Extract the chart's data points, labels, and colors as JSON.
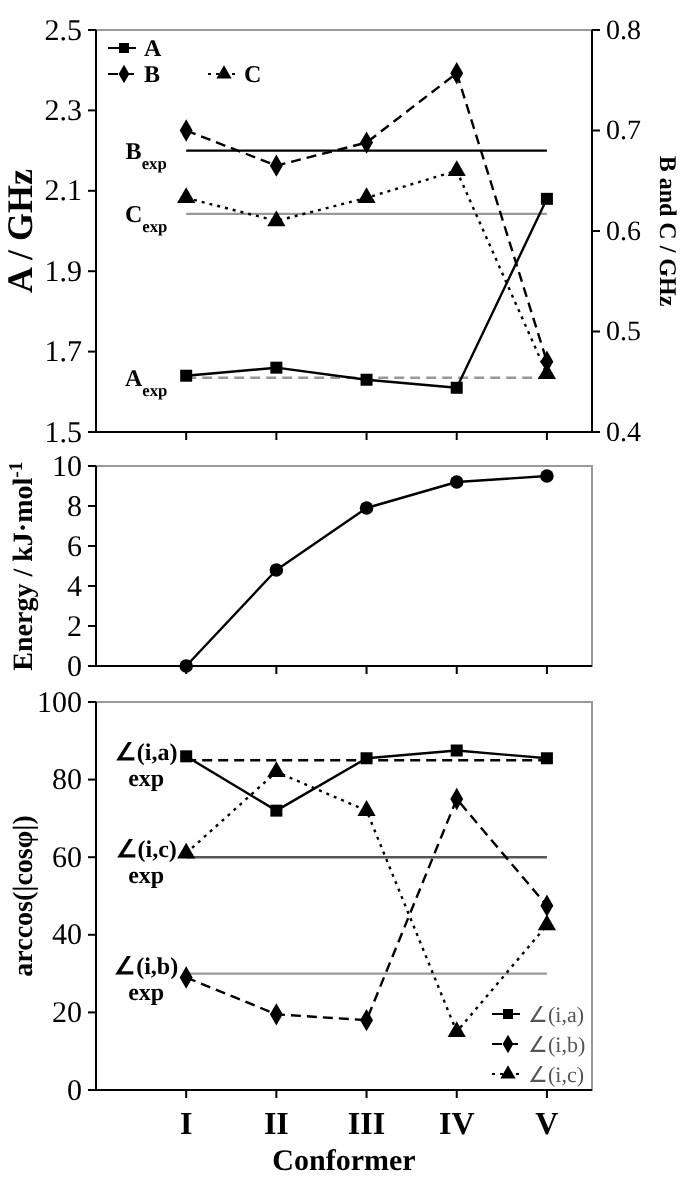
{
  "chart_data": [
    {
      "type": "line",
      "ylabel": "A / GHz",
      "y2label": "B and C / GHz",
      "categories": [
        null,
        null,
        null,
        null,
        null
      ],
      "ylim": [
        1.5,
        2.5
      ],
      "yticks": [
        1.5,
        1.7,
        1.9,
        2.1,
        2.3,
        2.5
      ],
      "y2lim": [
        0.4,
        0.8
      ],
      "y2ticks": [
        0.4,
        0.5,
        0.6,
        0.7,
        0.8
      ],
      "tick_labels": "y",
      "grid": false,
      "legend": "top left",
      "series": [
        {
          "name": "A",
          "color": "#000000",
          "values": [
            1.64,
            1.66,
            1.63,
            1.61,
            2.08
          ],
          "marker": "square",
          "line_style": "solid"
        },
        {
          "name": "B",
          "color": "#000000",
          "values": [
            0.7,
            0.665,
            0.688,
            0.757,
            0.47
          ],
          "axis": "y2",
          "marker": "diamond",
          "line_style": "dashed"
        },
        {
          "name": "C",
          "color": "#000000",
          "values": [
            0.633,
            0.61,
            0.633,
            0.66,
            0.458
          ],
          "axis": "y2",
          "marker": "triangle",
          "line_style": "dotted"
        }
      ],
      "ref_lines": [
        {
          "axis": "y",
          "value": 1.635,
          "label": "A$_{exp}$",
          "color": "#999999",
          "line_style": "dashed"
        },
        {
          "axis": "y2",
          "value": 0.68,
          "label": "B$_{exp}$",
          "color": "#000000",
          "line_style": "solid"
        },
        {
          "axis": "y2",
          "value": 0.617,
          "label": "C$_{exp}$",
          "color": "#999999",
          "line_style": "solid"
        }
      ]
    },
    {
      "type": "line",
      "ylabel": "Energy / kJ·mol$^{-1}$",
      "categories": [
        null,
        null,
        null,
        null,
        null
      ],
      "ylim": [
        0,
        10
      ],
      "yticks": [
        0,
        2,
        4,
        6,
        8,
        10
      ],
      "tick_labels": "y",
      "grid": false,
      "legend": false,
      "series": [
        {
          "color": "#000000",
          "values": [
            0,
            4.8,
            7.9,
            9.2,
            9.5
          ],
          "marker": "circle",
          "line_style": "solid"
        }
      ]
    },
    {
      "type": "line",
      "ylabel": "arccos(|cosφ|)",
      "xlabel": "Conformer",
      "categories": [
        "I",
        "II",
        "III",
        "IV",
        "V"
      ],
      "ylim": [
        0,
        100
      ],
      "yticks": [
        0,
        20,
        40,
        60,
        80,
        100
      ],
      "grid": false,
      "legend": "bottom right",
      "series": [
        {
          "name": "∠(i,a)",
          "color": "#000000",
          "values": [
            86,
            72,
            85.5,
            87.5,
            85.5
          ],
          "marker": "square",
          "line_style": "solid"
        },
        {
          "name": "∠(i,b)",
          "color": "#000000",
          "values": [
            29,
            19.5,
            18,
            75,
            47.5
          ],
          "marker": "diamond",
          "line_style": "dashed"
        },
        {
          "name": "∠(i,c)",
          "color": "#000000",
          "values": [
            61,
            82,
            72,
            15,
            42.5
          ],
          "marker": "triangle",
          "line_style": "dotted"
        }
      ],
      "ref_lines": [
        {
          "axis": "y",
          "value": 85,
          "label": "∠(i,a)\nexp",
          "color": "#000000",
          "line_style": "dashed"
        },
        {
          "axis": "y",
          "value": 60,
          "label": "∠(i,c)\nexp",
          "color": "#555555",
          "line_style": "solid"
        },
        {
          "axis": "y",
          "value": 30,
          "label": "∠(i,b)\nexp",
          "color": "#999999",
          "line_style": "solid"
        }
      ]
    }
  ]
}
